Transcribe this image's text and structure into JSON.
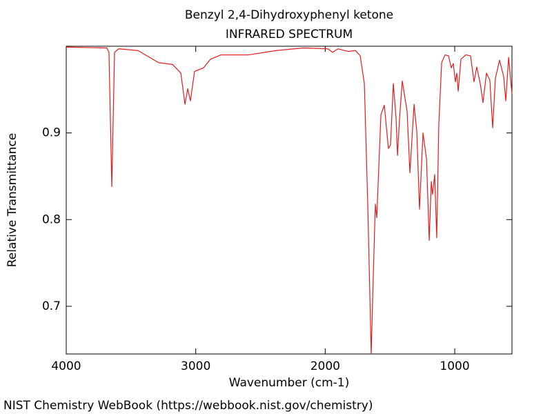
{
  "chart_data": {
    "type": "line",
    "title": "Benzyl 2,4-Dihydroxyphenyl ketone",
    "subtitle": "INFRARED SPECTRUM",
    "x_label": "Wavenumber (cm-1)",
    "y_label": "Relative Transmittance",
    "footer": "NIST Chemistry WebBook (https://webbook.nist.gov/chemistry)",
    "color": "#e41a1c",
    "xlim": [
      4000,
      558
    ],
    "ylim": [
      0.645,
      1.0
    ],
    "xticks": [
      4000,
      3000,
      2000,
      1000
    ],
    "yticks": [
      0.7,
      0.8,
      0.9
    ],
    "x": [
      4000,
      3686,
      3670,
      3648,
      3627,
      3595,
      3446,
      3286,
      3179,
      3115,
      3083,
      3062,
      3041,
      3009,
      2940,
      2886,
      2806,
      2593,
      2380,
      2167,
      1980,
      1943,
      1901,
      1821,
      1767,
      1730,
      1698,
      1671,
      1645,
      1629,
      1613,
      1602,
      1586,
      1570,
      1544,
      1512,
      1496,
      1474,
      1453,
      1442,
      1426,
      1405,
      1368,
      1346,
      1314,
      1293,
      1272,
      1245,
      1218,
      1197,
      1181,
      1171,
      1155,
      1139,
      1123,
      1101,
      1075,
      1048,
      1027,
      1011,
      995,
      984,
      973,
      952,
      915,
      878,
      851,
      830,
      803,
      782,
      755,
      729,
      707,
      686,
      654,
      622,
      606,
      584,
      558
    ],
    "values": [
      0.999,
      0.998,
      0.993,
      0.838,
      0.993,
      0.997,
      0.995,
      0.981,
      0.979,
      0.969,
      0.933,
      0.951,
      0.937,
      0.971,
      0.975,
      0.985,
      0.99,
      0.99,
      0.995,
      0.998,
      0.997,
      0.993,
      0.997,
      0.994,
      0.995,
      0.989,
      0.957,
      0.814,
      0.645,
      0.735,
      0.818,
      0.802,
      0.862,
      0.921,
      0.932,
      0.882,
      0.886,
      0.957,
      0.917,
      0.874,
      0.917,
      0.96,
      0.925,
      0.854,
      0.933,
      0.902,
      0.812,
      0.9,
      0.87,
      0.776,
      0.844,
      0.829,
      0.852,
      0.779,
      0.91,
      0.981,
      0.99,
      0.989,
      0.975,
      0.98,
      0.959,
      0.969,
      0.948,
      0.985,
      0.99,
      0.989,
      0.959,
      0.976,
      0.957,
      0.935,
      0.969,
      0.961,
      0.906,
      0.963,
      0.984,
      0.965,
      0.937,
      0.987,
      0.945
    ]
  }
}
